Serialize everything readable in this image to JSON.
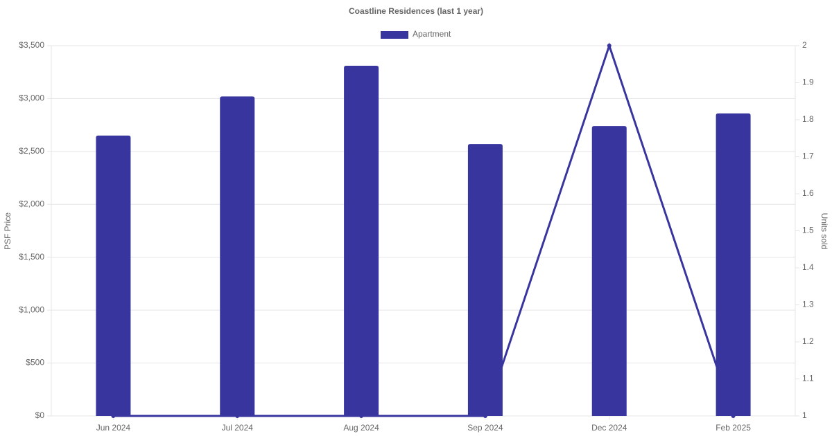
{
  "chart_data": {
    "type": "bar",
    "title": "Coastline Residences (last 1 year)",
    "categories": [
      "Jun 2024",
      "Jul 2024",
      "Aug 2024",
      "Sep 2024",
      "Dec 2024",
      "Feb 2025"
    ],
    "series": [
      {
        "name": "Apartment",
        "color": "#38369e",
        "values": [
          2650,
          3020,
          3310,
          2570,
          2740,
          2860
        ]
      },
      {
        "type": "line",
        "axis": "y2",
        "color": "#38369e",
        "values": [
          1,
          1,
          1,
          1,
          2,
          1
        ]
      }
    ],
    "ylabel": "PSF Price",
    "y2label": "Units sold",
    "ylim": [
      0,
      3500
    ],
    "yticks": [
      {
        "value": 0,
        "label": "$0"
      },
      {
        "value": 500,
        "label": "$500"
      },
      {
        "value": 1000,
        "label": "$1,000"
      },
      {
        "value": 1500,
        "label": "$1,500"
      },
      {
        "value": 2000,
        "label": "$2,000"
      },
      {
        "value": 2500,
        "label": "$2,500"
      },
      {
        "value": 3000,
        "label": "$3,000"
      },
      {
        "value": 3500,
        "label": "$3,500"
      }
    ],
    "y2lim": [
      1,
      2
    ],
    "y2ticks": [
      1,
      1.1,
      1.2,
      1.3,
      1.4,
      1.5,
      1.6,
      1.7,
      1.8,
      1.9,
      2
    ],
    "grid": true,
    "legend": "top"
  }
}
